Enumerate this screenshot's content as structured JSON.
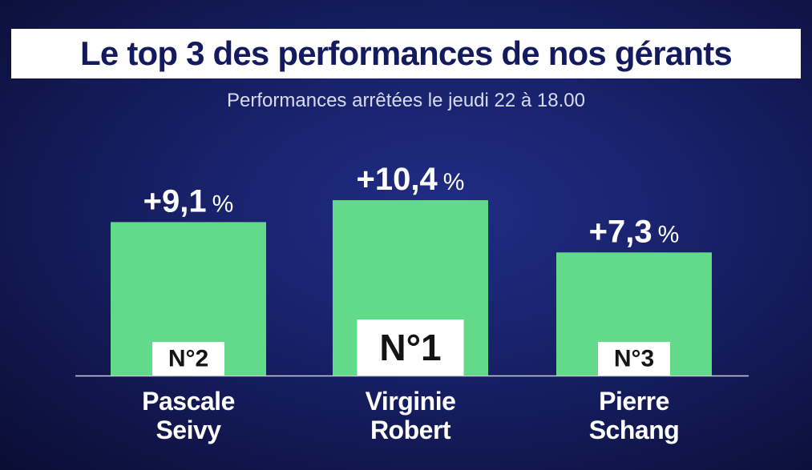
{
  "header": {
    "title": "Le top 3 des performances de nos gérants",
    "subtitle": "Performances arrêtées le jeudi 22 à 18.00"
  },
  "colors": {
    "bar": "#63d98a",
    "baseline": "#c8cce0",
    "badge_bg": "#ffffff",
    "title_text": "#141a5e"
  },
  "chart_data": {
    "type": "bar",
    "title": "Le top 3 des performances de nos gérants",
    "subtitle": "Performances arrêtées le jeudi 22 à 18.00",
    "categories": [
      "Pascale Seivy",
      "Virginie Robert",
      "Pierre Schang"
    ],
    "values": [
      9.1,
      10.4,
      7.3
    ],
    "value_labels": [
      "+9,1",
      "+10,4",
      "+7,3"
    ],
    "unit": "%",
    "ranks": [
      "N°2",
      "N°1",
      "N°3"
    ],
    "name_lines": [
      [
        "Pascale",
        "Seivy"
      ],
      [
        "Virginie",
        "Robert"
      ],
      [
        "Pierre",
        "Schang"
      ]
    ],
    "ylim": [
      0,
      15
    ],
    "grid": false,
    "legend": "none"
  }
}
